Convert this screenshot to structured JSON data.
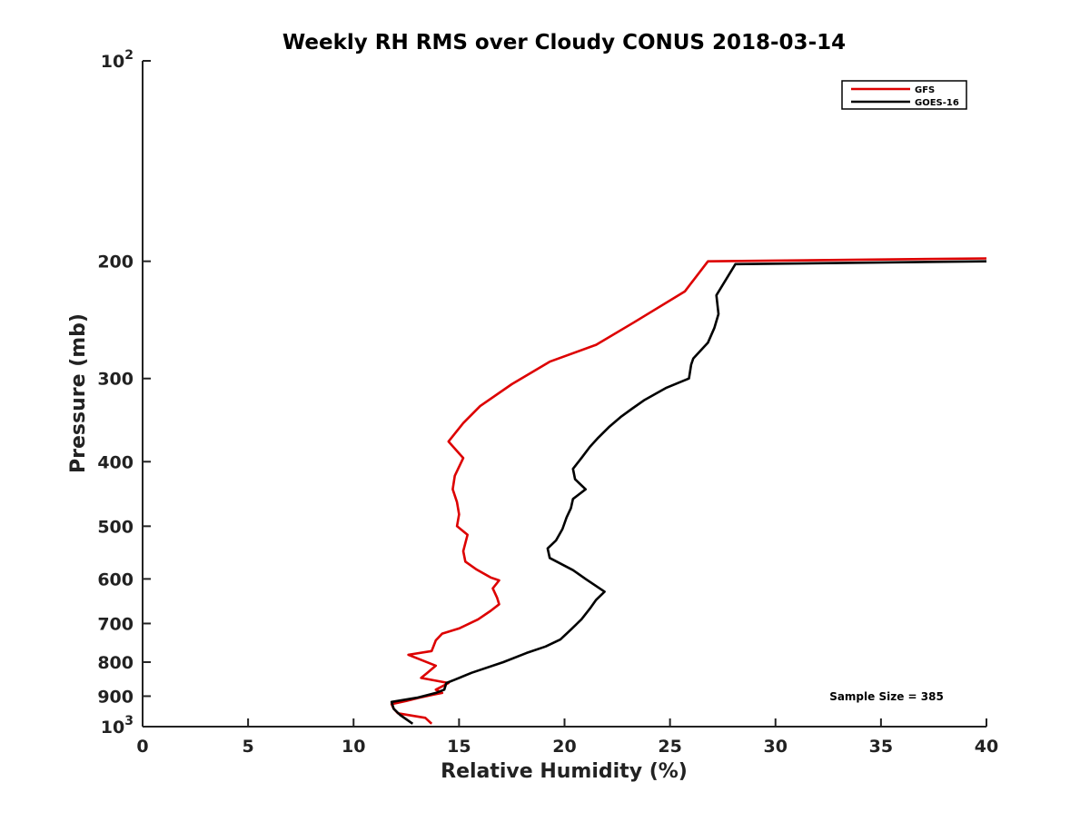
{
  "chart_data": {
    "type": "line",
    "title": "Weekly RH RMS over Cloudy CONUS 2018-03-14",
    "xlabel": "Relative Humidity (%)",
    "ylabel": "Pressure (mb)",
    "xlim": [
      0,
      40
    ],
    "ylim": [
      100,
      1000
    ],
    "yscale": "log",
    "y_reversed": true,
    "grid": false,
    "legend_position": "top-right",
    "annotation": "Sample Size = 385",
    "x_ticks": [
      {
        "value": 0,
        "label": "0"
      },
      {
        "value": 5,
        "label": "5"
      },
      {
        "value": 10,
        "label": "10"
      },
      {
        "value": 15,
        "label": "15"
      },
      {
        "value": 20,
        "label": "20"
      },
      {
        "value": 25,
        "label": "25"
      },
      {
        "value": 30,
        "label": "30"
      },
      {
        "value": 35,
        "label": "35"
      },
      {
        "value": 40,
        "label": "40"
      }
    ],
    "y_ticks": [
      {
        "value": 100,
        "base": "10",
        "exp": "2"
      },
      {
        "value": 200,
        "label": "200"
      },
      {
        "value": 300,
        "label": "300"
      },
      {
        "value": 400,
        "label": "400"
      },
      {
        "value": 500,
        "label": "500"
      },
      {
        "value": 600,
        "label": "600"
      },
      {
        "value": 700,
        "label": "700"
      },
      {
        "value": 800,
        "label": "800"
      },
      {
        "value": 900,
        "label": "900"
      },
      {
        "value": 1000,
        "base": "10",
        "exp": "3"
      }
    ],
    "series": [
      {
        "name": "GFS",
        "color": "#dd0000",
        "points": [
          [
            40,
            198
          ],
          [
            26.8,
            200
          ],
          [
            25.7,
            222
          ],
          [
            23.3,
            247
          ],
          [
            21.5,
            267
          ],
          [
            19.3,
            283
          ],
          [
            17.5,
            306
          ],
          [
            16,
            330
          ],
          [
            15.2,
            350
          ],
          [
            14.5,
            373
          ],
          [
            15.2,
            395
          ],
          [
            14.8,
            420
          ],
          [
            14.7,
            440
          ],
          [
            14.9,
            460
          ],
          [
            15,
            480
          ],
          [
            14.9,
            500
          ],
          [
            15.4,
            515
          ],
          [
            15.2,
            545
          ],
          [
            15.3,
            565
          ],
          [
            15.8,
            580
          ],
          [
            16.5,
            597
          ],
          [
            16.9,
            603
          ],
          [
            16.6,
            620
          ],
          [
            16.8,
            640
          ],
          [
            16.9,
            655
          ],
          [
            16.5,
            670
          ],
          [
            15.9,
            690
          ],
          [
            15,
            712
          ],
          [
            14.2,
            725
          ],
          [
            13.9,
            742
          ],
          [
            13.7,
            770
          ],
          [
            12.6,
            780
          ],
          [
            13.9,
            810
          ],
          [
            13.5,
            830
          ],
          [
            13.2,
            845
          ],
          [
            14.5,
            860
          ],
          [
            13.9,
            880
          ],
          [
            14.2,
            890
          ],
          [
            13.8,
            895
          ],
          [
            13.1,
            905
          ],
          [
            12.5,
            915
          ],
          [
            11.8,
            925
          ],
          [
            11.9,
            940
          ],
          [
            12.1,
            955
          ],
          [
            13.4,
            970
          ],
          [
            13.7,
            990
          ]
        ]
      },
      {
        "name": "GOES-16",
        "color": "#000000",
        "points": [
          [
            40,
            200
          ],
          [
            28.1,
            202
          ],
          [
            27.2,
            225
          ],
          [
            27.3,
            240
          ],
          [
            27.1,
            252
          ],
          [
            26.8,
            265
          ],
          [
            26.1,
            280
          ],
          [
            26,
            286
          ],
          [
            25.9,
            300
          ],
          [
            24.8,
            310
          ],
          [
            23.8,
            323
          ],
          [
            23.2,
            333
          ],
          [
            22.7,
            342
          ],
          [
            22.1,
            355
          ],
          [
            21.6,
            368
          ],
          [
            21.2,
            380
          ],
          [
            20.8,
            395
          ],
          [
            20.4,
            410
          ],
          [
            20.5,
            425
          ],
          [
            21,
            440
          ],
          [
            20.4,
            455
          ],
          [
            20.3,
            470
          ],
          [
            20.1,
            485
          ],
          [
            19.9,
            505
          ],
          [
            19.6,
            525
          ],
          [
            19.2,
            540
          ],
          [
            19.3,
            558
          ],
          [
            20.4,
            582
          ],
          [
            21,
            600
          ],
          [
            21.9,
            627
          ],
          [
            21.5,
            645
          ],
          [
            21.2,
            665
          ],
          [
            20.8,
            690
          ],
          [
            20.3,
            715
          ],
          [
            19.8,
            740
          ],
          [
            19.1,
            758
          ],
          [
            18.2,
            775
          ],
          [
            17.1,
            800
          ],
          [
            15.6,
            830
          ],
          [
            14.8,
            850
          ],
          [
            14.4,
            860
          ],
          [
            14.3,
            880
          ],
          [
            13.9,
            890
          ],
          [
            13,
            905
          ],
          [
            11.8,
            918
          ],
          [
            11.9,
            940
          ],
          [
            12.2,
            960
          ],
          [
            12.8,
            990
          ]
        ]
      }
    ]
  }
}
